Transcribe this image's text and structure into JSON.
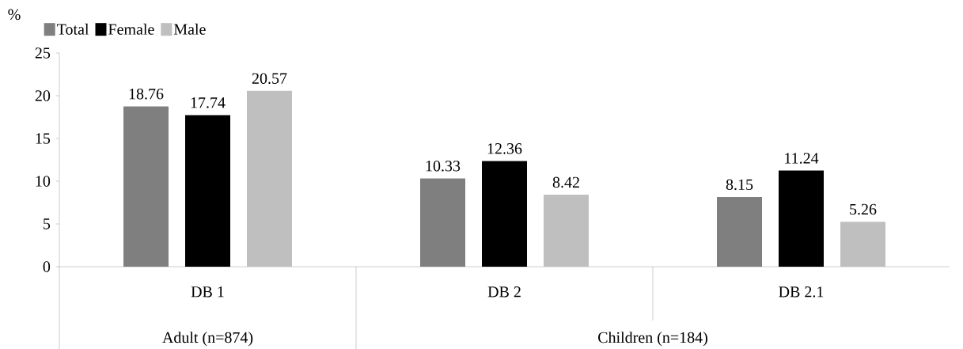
{
  "chart_data": {
    "type": "bar",
    "ylabel": "%",
    "categories": [
      "DB 1",
      "DB 2",
      "DB 2.1"
    ],
    "series": [
      {
        "name": "Total",
        "color": "#7f7f7f",
        "values": [
          18.76,
          10.33,
          8.15
        ]
      },
      {
        "name": "Female",
        "color": "#000000",
        "values": [
          17.74,
          12.36,
          11.24
        ]
      },
      {
        "name": "Male",
        "color": "#bfbfbf",
        "values": [
          20.57,
          8.42,
          5.26
        ]
      }
    ],
    "annotations": [
      "Adult (n=874)",
      "Children (n=184)"
    ],
    "ylim": [
      0,
      25
    ],
    "yticks": [
      0,
      5,
      10,
      15,
      20,
      25
    ],
    "data_labels": true,
    "legend": "top left",
    "grid": false
  }
}
